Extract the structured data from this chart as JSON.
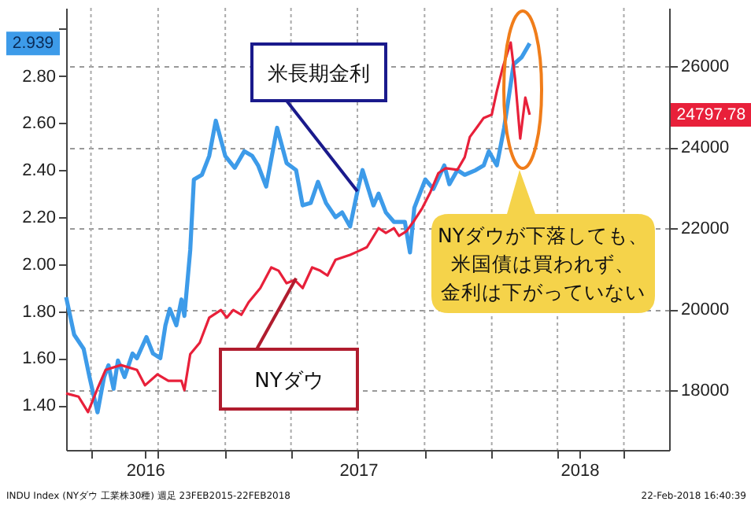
{
  "chart_data": {
    "type": "line",
    "xlim": [
      "2016-05-28",
      "2018-09-01"
    ],
    "xticks": [
      {
        "value": "2016-07-01",
        "label": null
      },
      {
        "value": "2016-09-13",
        "label": "2016"
      },
      {
        "value": "2016-10-01",
        "label": null
      },
      {
        "value": "2017-01-01",
        "label": null
      },
      {
        "value": "2017-04-01",
        "label": null
      },
      {
        "value": "2017-07-02",
        "label": "2017"
      },
      {
        "value": "2017-07-01",
        "label": null
      },
      {
        "value": "2017-10-01",
        "label": null
      },
      {
        "value": "2018-01-01",
        "label": null
      },
      {
        "value": "2018-04-01",
        "label": null
      },
      {
        "value": "2018-05-01",
        "label": "2018"
      },
      {
        "value": "2018-07-01",
        "label": null
      }
    ],
    "ylim": [
      1.21,
      3.09
    ],
    "yticks": [
      {
        "value": 1.4,
        "label": "1.40"
      },
      {
        "value": 1.6,
        "label": "1.60"
      },
      {
        "value": 1.8,
        "label": "1.80"
      },
      {
        "value": 2.0,
        "label": "2.00"
      },
      {
        "value": 2.2,
        "label": "2.20"
      },
      {
        "value": 2.4,
        "label": "2.40"
      },
      {
        "value": 2.6,
        "label": "2.60"
      },
      {
        "value": 2.8,
        "label": "2.80"
      },
      {
        "value": 3.0,
        "label": null
      }
    ],
    "y2lim": [
      16525,
      27437
    ],
    "y2ticks": [
      {
        "value": 18000,
        "label": "18000"
      },
      {
        "value": 20000,
        "label": "20000"
      },
      {
        "value": 22000,
        "label": "22000"
      },
      {
        "value": 24000,
        "label": "24000"
      },
      {
        "value": 26000,
        "label": "26000"
      }
    ],
    "grid": true,
    "series": [
      {
        "color": "#3d9be9",
        "x": [
          "2016-05-28",
          "2016-06-08",
          "2016-06-21",
          "2016-06-29",
          "2016-07-10",
          "2016-07-19",
          "2016-07-25",
          "2016-08-01",
          "2016-08-07",
          "2016-08-16",
          "2016-08-27",
          "2016-09-02",
          "2016-09-15",
          "2016-09-24",
          "2016-10-04",
          "2016-10-11",
          "2016-10-17",
          "2016-10-26",
          "2016-11-02",
          "2016-11-06",
          "2016-11-14",
          "2016-11-19",
          "2016-11-30",
          "2016-12-10",
          "2016-12-19",
          "2017-01-01",
          "2017-01-14",
          "2017-01-27",
          "2017-02-07",
          "2017-02-15",
          "2017-02-26",
          "2017-03-13",
          "2017-03-26",
          "2017-04-08",
          "2017-04-17",
          "2017-04-28",
          "2017-05-08",
          "2017-05-19",
          "2017-06-01",
          "2017-06-10",
          "2017-06-21",
          "2017-07-01",
          "2017-07-08",
          "2017-07-23",
          "2017-07-30",
          "2017-08-09",
          "2017-08-20",
          "2017-09-04",
          "2017-09-11",
          "2017-09-17",
          "2017-10-02",
          "2017-10-13",
          "2017-10-28",
          "2017-11-04",
          "2017-11-15",
          "2017-11-25",
          "2017-12-10",
          "2017-12-21",
          "2017-12-28",
          "2018-01-08",
          "2018-01-18",
          "2018-01-31",
          "2018-02-11",
          "2018-02-22"
        ],
        "values": [
          1.86,
          1.7,
          1.64,
          1.52,
          1.37,
          1.52,
          1.57,
          1.47,
          1.59,
          1.52,
          1.62,
          1.6,
          1.69,
          1.62,
          1.6,
          1.74,
          1.81,
          1.74,
          1.85,
          1.78,
          2.06,
          2.36,
          2.38,
          2.46,
          2.61,
          2.46,
          2.41,
          2.48,
          2.46,
          2.42,
          2.33,
          2.58,
          2.43,
          2.4,
          2.25,
          2.26,
          2.35,
          2.26,
          2.2,
          2.22,
          2.16,
          2.31,
          2.4,
          2.25,
          2.3,
          2.22,
          2.18,
          2.18,
          2.05,
          2.24,
          2.36,
          2.32,
          2.42,
          2.34,
          2.4,
          2.38,
          2.4,
          2.42,
          2.48,
          2.42,
          2.58,
          2.85,
          2.88,
          2.939
        ]
      },
      {
        "color": "#e8203a",
        "axis": "y2",
        "x": [
          "2016-05-28",
          "2016-06-14",
          "2016-06-27",
          "2016-07-10",
          "2016-07-21",
          "2016-08-11",
          "2016-09-02",
          "2016-09-13",
          "2016-09-30",
          "2016-10-15",
          "2016-11-02",
          "2016-11-06",
          "2016-11-14",
          "2016-11-27",
          "2016-12-10",
          "2016-12-26",
          "2017-01-03",
          "2017-01-12",
          "2017-01-23",
          "2017-02-02",
          "2017-02-18",
          "2017-03-05",
          "2017-03-15",
          "2017-03-26",
          "2017-04-06",
          "2017-04-17",
          "2017-04-30",
          "2017-05-11",
          "2017-05-21",
          "2017-06-01",
          "2017-06-21",
          "2017-07-01",
          "2017-07-14",
          "2017-07-30",
          "2017-08-09",
          "2017-08-20",
          "2017-08-27",
          "2017-09-06",
          "2017-09-17",
          "2017-09-28",
          "2017-10-09",
          "2017-10-20",
          "2017-10-30",
          "2017-11-15",
          "2017-11-25",
          "2017-12-02",
          "2017-12-13",
          "2017-12-21",
          "2018-01-01",
          "2018-01-08",
          "2018-01-16",
          "2018-01-27",
          "2018-02-02",
          "2018-02-09",
          "2018-02-16",
          "2018-02-22"
        ],
        "values": [
          17920,
          17840,
          17460,
          18040,
          18500,
          18620,
          18500,
          18120,
          18390,
          18230,
          18230,
          18000,
          18890,
          19170,
          19790,
          19980,
          19790,
          19980,
          19860,
          20170,
          20520,
          21030,
          20950,
          20640,
          20720,
          20520,
          21030,
          20950,
          20830,
          21220,
          21340,
          21420,
          21530,
          22000,
          21880,
          22000,
          21810,
          21920,
          22190,
          22500,
          22890,
          23360,
          23480,
          23440,
          23750,
          24250,
          24520,
          24720,
          24800,
          25380,
          25960,
          26580,
          25690,
          24210,
          25220,
          24797.78
        ]
      }
    ],
    "annotations": [
      {
        "text": "米長期金利",
        "x": "2017-07-01",
        "y": 2.31
      },
      {
        "text": "NYダウ",
        "x": "2017-04-08",
        "y": 1.94
      },
      "NYダウが下落しても、米国債は買われず、金利は下がっていない",
      "2.939",
      "24797.78",
      "INDU Index (NYダウ 工業株30種) 週足 23FEB2015-22FEB2018",
      "22-Feb-2018 16:40:39"
    ]
  }
}
